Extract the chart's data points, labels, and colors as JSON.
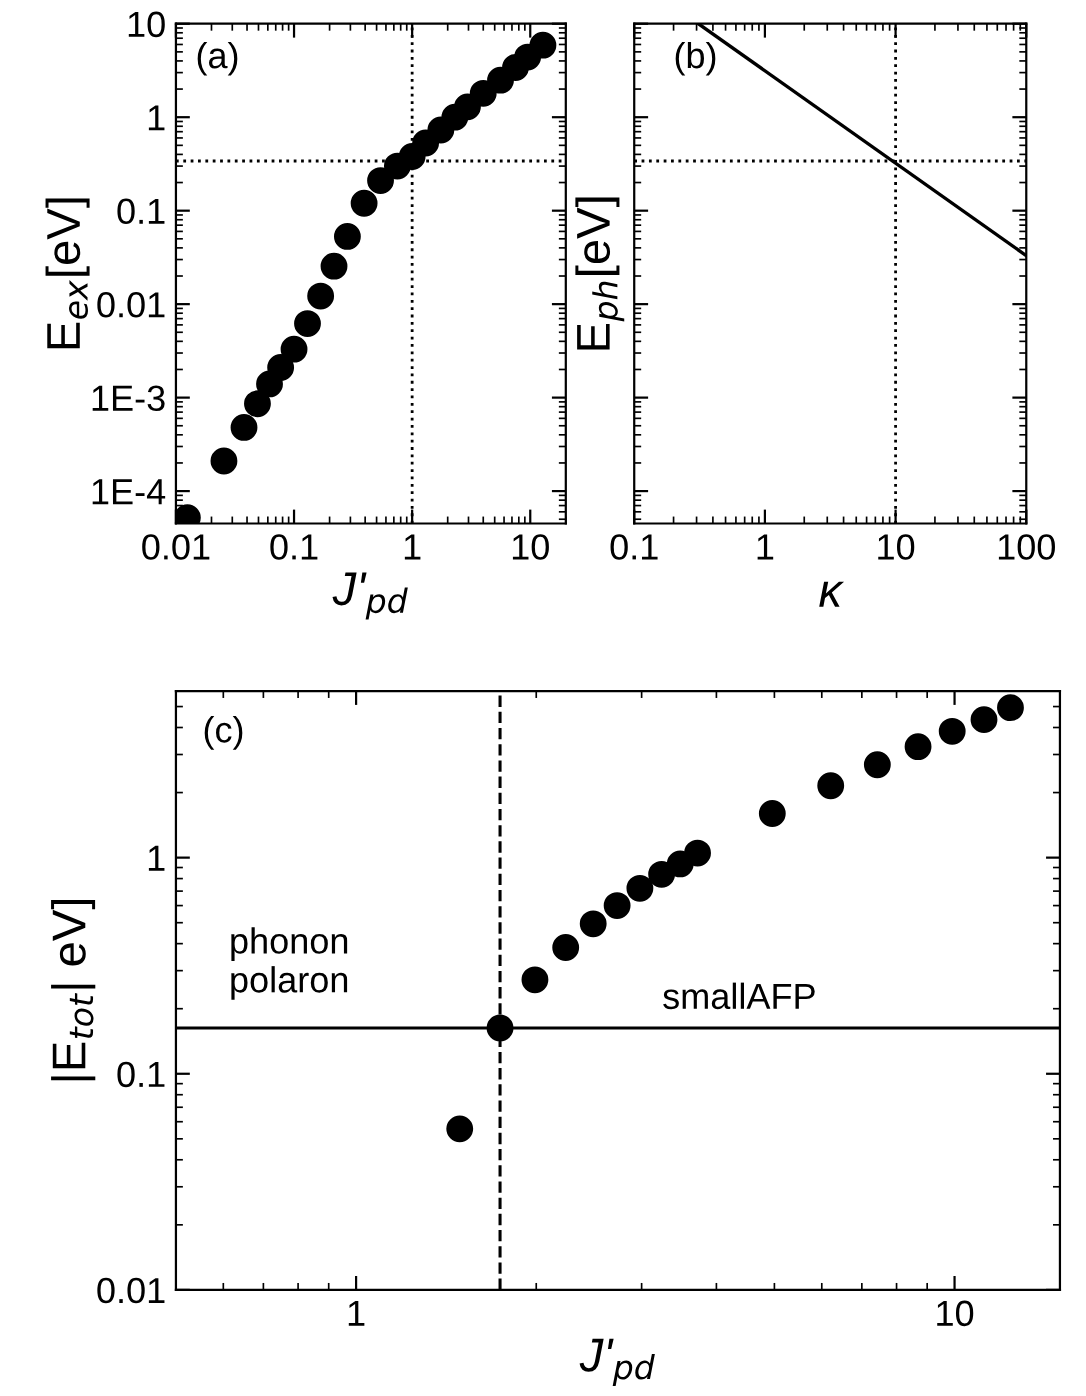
{
  "chart_data": [
    {
      "type": "scatter",
      "xlabel": "J'$_{pd}$",
      "ylabel": "E$_{ex}$[eV]",
      "annotations": [
        "(a)"
      ],
      "log": "xy",
      "marker": "circle",
      "grid": false,
      "legend": false,
      "series": [
        {
          "color": "#000000",
          "x": [
            0.0125,
            0.0255,
            0.0377,
            0.049,
            0.062,
            0.077,
            0.1,
            0.13,
            0.168,
            0.218,
            0.283,
            0.392,
            0.54,
            0.75,
            1,
            1.3,
            1.75,
            2.3,
            2.94,
            4.0,
            5.6,
            7.5,
            9.5,
            12.8
          ],
          "values": [
            5.2e-05,
            0.00021,
            0.00048,
            0.00086,
            0.0014,
            0.0021,
            0.0033,
            0.0062,
            0.0122,
            0.0255,
            0.053,
            0.12,
            0.21,
            0.3,
            0.38,
            0.53,
            0.73,
            1.0,
            1.29,
            1.8,
            2.49,
            3.4,
            4.4,
            5.9
          ]
        }
      ],
      "xlim": [
        0.01,
        20
      ],
      "ylim": [
        4.5e-05,
        10
      ],
      "xticks": [
        0.01,
        0.1,
        1,
        10
      ],
      "yticks": [
        {
          "value": 0.0001,
          "label": "1E-4"
        },
        {
          "value": 0.001,
          "label": "1E-3"
        },
        0.01,
        0.1,
        1,
        10
      ],
      "ref_lines": [
        {
          "axis": "x",
          "value": 1,
          "line_style": "dotted",
          "color": "#000000"
        },
        {
          "axis": "y",
          "value": 0.34,
          "line_style": "dotted",
          "color": "#000000"
        }
      ]
    },
    {
      "type": "line",
      "xlabel": "κ",
      "ylabel": "E$_{ph}$[eV]",
      "annotations": [
        "(b)"
      ],
      "log": "xy",
      "grid": false,
      "legend": false,
      "line_style": "solid",
      "marker": "none",
      "series": [
        {
          "color": "#000000",
          "x": [
            0.31,
            100
          ],
          "values": [
            10,
            0.033
          ]
        }
      ],
      "xlim": [
        0.1,
        100
      ],
      "ylim": [
        4.5e-05,
        10
      ],
      "xticks": [
        0.1,
        1,
        10,
        100
      ],
      "yticks": [
        0.0001,
        0.001,
        0.01,
        0.1,
        1,
        10
      ],
      "tick_labels": "x",
      "ref_lines": [
        {
          "axis": "x",
          "value": 10,
          "line_style": "dotted",
          "color": "#000000"
        },
        {
          "axis": "y",
          "value": 0.34,
          "line_style": "dotted",
          "color": "#000000"
        }
      ]
    },
    {
      "type": "scatter",
      "xlabel": "J'$_{pd}$",
      "ylabel": "|E$_{tot}$| eV]",
      "log": "xy",
      "marker": "circle",
      "grid": false,
      "legend": false,
      "annotations": [
        {
          "text": "(c)"
        },
        {
          "text": "phonon\npolaron"
        },
        {
          "text": "smallAFP"
        }
      ],
      "series": [
        {
          "color": "#000000",
          "x": [
            1.49,
            1.74,
            1.99,
            2.24,
            2.49,
            2.73,
            2.98,
            3.24,
            3.48,
            3.72,
            4.96,
            6.21,
            7.43,
            8.69,
            9.91,
            11.2,
            12.4
          ],
          "values": [
            0.0556,
            0.163,
            0.272,
            0.384,
            0.494,
            0.6,
            0.721,
            0.837,
            0.935,
            1.05,
            1.6,
            2.15,
            2.69,
            3.26,
            3.84,
            4.35,
            4.94
          ]
        }
      ],
      "xlim": [
        0.5,
        15
      ],
      "ylim": [
        0.01,
        5.9
      ],
      "xticks": [
        1,
        10
      ],
      "yticks": [
        0.01,
        0.1,
        1
      ],
      "ref_lines": [
        {
          "axis": "x",
          "value": 1.74,
          "line_style": "dashed",
          "color": "#000000"
        },
        {
          "axis": "y",
          "value": 0.163,
          "line_style": "solid",
          "color": "#000000"
        }
      ]
    }
  ]
}
